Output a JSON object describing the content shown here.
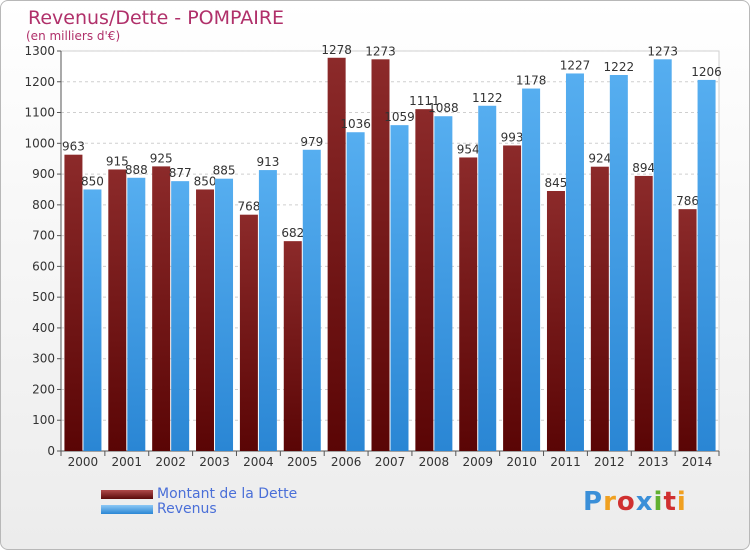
{
  "header": {
    "title": "Revenus/Dette - POMPAIRE",
    "subtitle": "(en milliers d'€)"
  },
  "legend": {
    "debt_label": "Montant de la Dette",
    "revenue_label": "Revenus"
  },
  "logo": {
    "letters": [
      "P",
      "r",
      "o",
      "x",
      "i",
      "t",
      "i"
    ],
    "colors": [
      "#3a8fd8",
      "#f0a020",
      "#d03030",
      "#3a8fd8",
      "#60b030",
      "#d03030",
      "#f0a020"
    ]
  },
  "colors": {
    "debt": "#7a1a1a",
    "revenue": "#3a9ae6"
  },
  "chart_data": {
    "type": "bar",
    "title": "Revenus/Dette - POMPAIRE",
    "subtitle": "(en milliers d'€)",
    "categories": [
      "2000",
      "2001",
      "2002",
      "2003",
      "2004",
      "2005",
      "2006",
      "2007",
      "2008",
      "2009",
      "2010",
      "2011",
      "2012",
      "2013",
      "2014"
    ],
    "series": [
      {
        "name": "Montant de la Dette",
        "values": [
          963,
          915,
          925,
          850,
          768,
          682,
          1278,
          1273,
          1111,
          954,
          993,
          845,
          924,
          894,
          786
        ]
      },
      {
        "name": "Revenus",
        "values": [
          850,
          888,
          877,
          885,
          913,
          979,
          1036,
          1059,
          1088,
          1122,
          1178,
          1227,
          1222,
          1273,
          1206
        ]
      }
    ],
    "yticks": [
      0,
      100,
      200,
      300,
      400,
      500,
      600,
      700,
      800,
      900,
      1000,
      1100,
      1200,
      1300
    ],
    "ylim": [
      0,
      1300
    ],
    "grid": true,
    "legend_position": "bottom-left"
  }
}
